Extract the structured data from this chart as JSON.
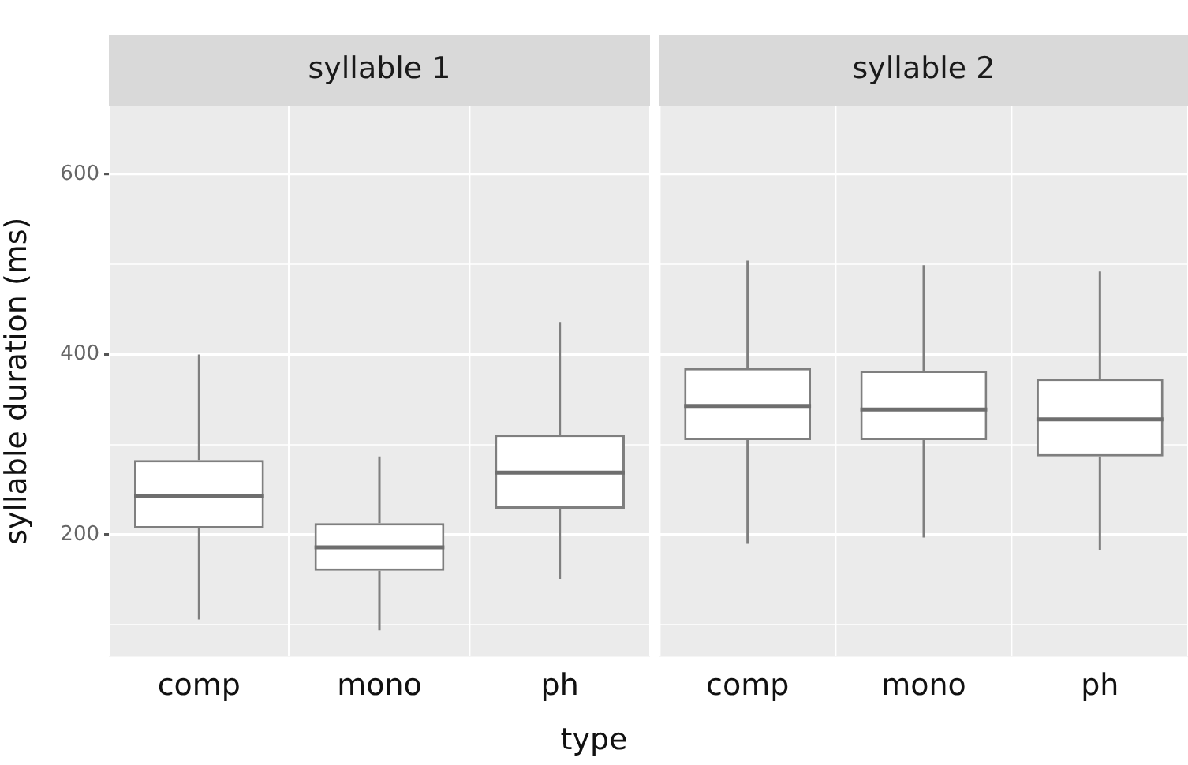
{
  "chart_data": [
    {
      "type": "box",
      "title": "syllable 1",
      "ylabel": "syllable duration (ms)",
      "xlabel": "type",
      "categories": [
        "comp",
        "mono",
        "ph"
      ],
      "boxes": [
        {
          "low": 106,
          "q1": 207,
          "median": 243,
          "q3": 283,
          "high": 400
        },
        {
          "low": 94,
          "q1": 160,
          "median": 186,
          "q3": 213,
          "high": 287
        },
        {
          "low": 151,
          "q1": 229,
          "median": 269,
          "q3": 311,
          "high": 436
        }
      ],
      "ylim": [
        65,
        676
      ],
      "yticks": [
        {
          "value": 100,
          "label": null
        },
        200,
        {
          "value": 300,
          "label": null
        },
        400,
        {
          "value": 500,
          "label": null
        },
        600
      ],
      "grid": true
    },
    {
      "type": "box",
      "title": "syllable 2",
      "categories": [
        "comp",
        "mono",
        "ph"
      ],
      "boxes": [
        {
          "low": 190,
          "q1": 305,
          "median": 343,
          "q3": 385,
          "high": 504
        },
        {
          "low": 197,
          "q1": 305,
          "median": 339,
          "q3": 382,
          "high": 499
        },
        {
          "low": 183,
          "q1": 287,
          "median": 328,
          "q3": 373,
          "high": 492
        }
      ],
      "ylim": [
        65,
        676
      ],
      "yticks": [
        {
          "value": 100,
          "label": null
        },
        200,
        {
          "value": 300,
          "label": null
        },
        400,
        {
          "value": 500,
          "label": null
        },
        600
      ],
      "grid": true,
      "tick_labels": "x"
    }
  ]
}
